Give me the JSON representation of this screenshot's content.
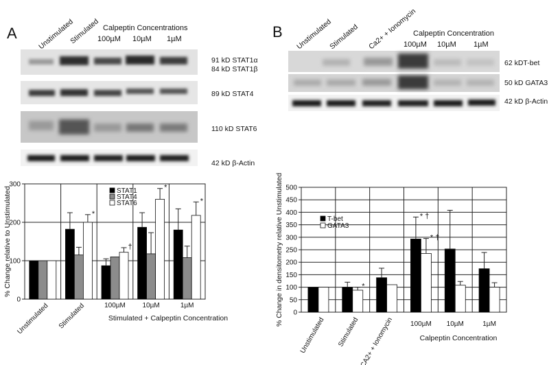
{
  "panel_a": {
    "letter": "A",
    "lanes": [
      "Unstimulated",
      "Stimulated",
      "100µM",
      "10µM",
      "1µM"
    ],
    "conc_header": "Calpeptin Concentrations",
    "band_labels": [
      "91 kD STAT1α",
      "84 kD STAT1β",
      "89 kD STAT4",
      "110 kD STAT6",
      "42 kD β-Actin"
    ]
  },
  "panel_b": {
    "letter": "B",
    "lanes": [
      "Unstimulated",
      "Stimulated",
      "Ca2+ + Ionomycin",
      "100µM",
      "10µM",
      "1µM"
    ],
    "conc_header": "Calpeptin Concentration",
    "band_labels": [
      "62 kDT-bet",
      "50 kD GATA3",
      "42 kD β-Actin"
    ]
  },
  "chart_data": [
    {
      "type": "bar",
      "ylabel": "% Change relative to Unstimulated",
      "xlabel": "Stimulated + Calpeptin Concentration",
      "ylim": [
        0,
        300
      ],
      "yticks": [
        "0",
        "100",
        "200",
        "300"
      ],
      "categories": [
        "Unstimulated",
        "Stimulated",
        "100µM",
        "10µM",
        "1µM"
      ],
      "series": [
        {
          "name": "STAT1",
          "color": "#000000",
          "values": [
            100,
            182,
            87,
            187,
            180
          ],
          "errors": [
            0,
            43,
            18,
            38,
            55
          ]
        },
        {
          "name": "STAT4",
          "color": "#8c8c8c",
          "values": [
            100,
            115,
            110,
            118,
            108
          ],
          "errors": [
            0,
            20,
            0,
            55,
            30
          ]
        },
        {
          "name": "STAT6",
          "color": "#ffffff",
          "values": [
            100,
            200,
            122,
            260,
            218
          ],
          "errors": [
            0,
            20,
            12,
            28,
            35
          ]
        }
      ],
      "annotations": [
        {
          "category": 1,
          "series": 2,
          "text": "*"
        },
        {
          "category": 2,
          "series": 2,
          "text": "†"
        },
        {
          "category": 3,
          "series": 2,
          "text": "*"
        },
        {
          "category": 4,
          "series": 2,
          "text": "*"
        }
      ],
      "legend_position": "top-left"
    },
    {
      "type": "bar",
      "ylabel": "% Change in densitometry relative Unstimulated",
      "xlabel": "Calpeptin Concentration",
      "ylim": [
        0,
        500
      ],
      "yticks": [
        "0",
        "50",
        "100",
        "150",
        "200",
        "250",
        "300",
        "350",
        "400",
        "450",
        "500"
      ],
      "categories": [
        "Unstimulated",
        "Stimulated",
        "CA2+ + Ionomycin",
        "100µM",
        "10µM",
        "1µM"
      ],
      "series": [
        {
          "name": "T-bet",
          "color": "#000000",
          "values": [
            100,
            100,
            138,
            293,
            253,
            174
          ],
          "errors": [
            0,
            20,
            38,
            88,
            155,
            65
          ]
        },
        {
          "name": "GATA3",
          "color": "#ffffff",
          "values": [
            100,
            88,
            110,
            235,
            108,
            100
          ],
          "errors": [
            0,
            12,
            0,
            60,
            15,
            18
          ]
        }
      ],
      "annotations": [
        {
          "category": 1,
          "series": 1,
          "text": "*"
        },
        {
          "category": 3,
          "series": 0,
          "text": "* †"
        },
        {
          "category": 3,
          "series": 1,
          "text": "* †"
        }
      ],
      "legend_position": "top-left"
    }
  ]
}
